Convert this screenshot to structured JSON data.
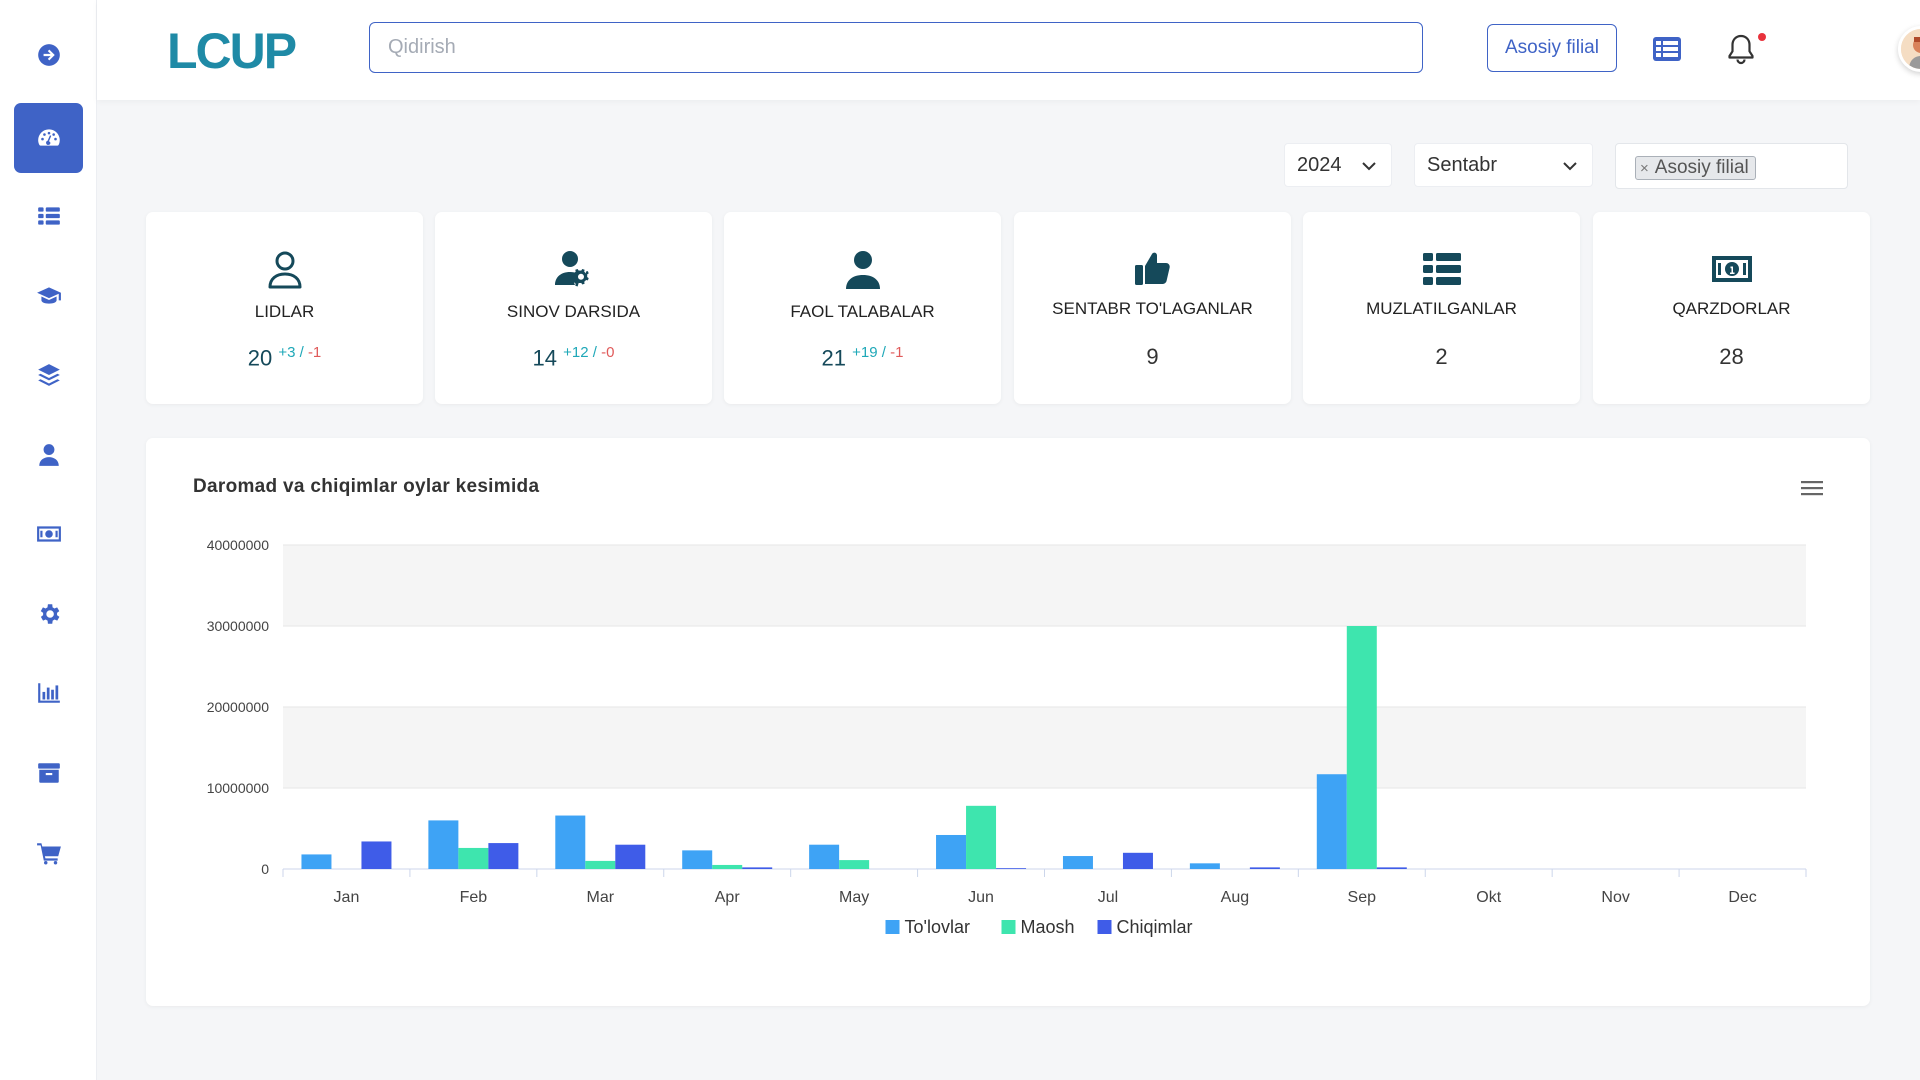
{
  "brand": {
    "logo_text": "LCUP"
  },
  "sidebar": {
    "items": [
      {
        "icon": "arrow-right-circle-icon",
        "active": false
      },
      {
        "icon": "dashboard-gauge-icon",
        "active": true
      },
      {
        "icon": "list-icon",
        "active": false
      },
      {
        "icon": "graduation-cap-icon",
        "active": false
      },
      {
        "icon": "layers-icon",
        "active": false
      },
      {
        "icon": "user-icon",
        "active": false
      },
      {
        "icon": "money-bill-icon",
        "active": false
      },
      {
        "icon": "gear-icon",
        "active": false
      },
      {
        "icon": "bar-chart-icon",
        "active": false
      },
      {
        "icon": "archive-icon",
        "active": false
      },
      {
        "icon": "cart-icon",
        "active": false
      }
    ]
  },
  "header": {
    "search_placeholder": "Qidirish",
    "branch_button": "Asosiy filial",
    "icons": [
      "table-list-icon",
      "bell-icon",
      "avatar"
    ]
  },
  "filters": {
    "year": "2024",
    "month": "Sentabr",
    "branch_tag": "Asosiy filial",
    "tag_remove": "×"
  },
  "cards": [
    {
      "icon": "user-outline-icon",
      "label": "LIDLAR",
      "value": "20",
      "plus": "+3",
      "sep": " / ",
      "minus": "-1"
    },
    {
      "icon": "user-gear-icon",
      "label": "SINOV DARSIDA",
      "value": "14",
      "plus": "+12",
      "sep": " / ",
      "minus": "-0"
    },
    {
      "icon": "user-solid-icon",
      "label": "FAOL TALABALAR",
      "value": "21",
      "plus": "+19",
      "sep": " / ",
      "minus": "-1"
    },
    {
      "icon": "thumbs-up-icon",
      "label": "SENTABR TO'LAGANLAR",
      "value": "9"
    },
    {
      "icon": "list-icon",
      "label": "MUZLATILGANLAR",
      "value": "2"
    },
    {
      "icon": "money-bill-icon",
      "label": "QARZDORLAR",
      "value": "28"
    }
  ],
  "chart_title": "Daromad va chiqimlar oylar kesimida",
  "chart_data": {
    "type": "bar",
    "title": "Daromad va chiqimlar oylar kesimida",
    "xlabel": "",
    "ylabel": "",
    "categories": [
      "Jan",
      "Feb",
      "Mar",
      "Apr",
      "May",
      "Jun",
      "Jul",
      "Aug",
      "Sep",
      "Okt",
      "Nov",
      "Dec"
    ],
    "ylim": [
      0,
      40000000
    ],
    "yticks": [
      "0",
      "10000000",
      "20000000",
      "30000000",
      "40000000"
    ],
    "grid": true,
    "legend": "bottom-center",
    "series": [
      {
        "name": "To'lovlar",
        "color": "#3ea3f5",
        "values": [
          1800000,
          6000000,
          6600000,
          2300000,
          3000000,
          4200000,
          1600000,
          700000,
          11700000,
          0,
          0,
          0
        ]
      },
      {
        "name": "Maosh",
        "color": "#3ee5ae",
        "values": [
          0,
          2600000,
          1000000,
          500000,
          1100000,
          7800000,
          0,
          0,
          30000000,
          0,
          0,
          0
        ]
      },
      {
        "name": "Chiqimlar",
        "color": "#3f5ce8",
        "values": [
          3400000,
          3200000,
          3000000,
          200000,
          0,
          100000,
          2000000,
          200000,
          200000,
          0,
          0,
          0
        ]
      }
    ]
  }
}
